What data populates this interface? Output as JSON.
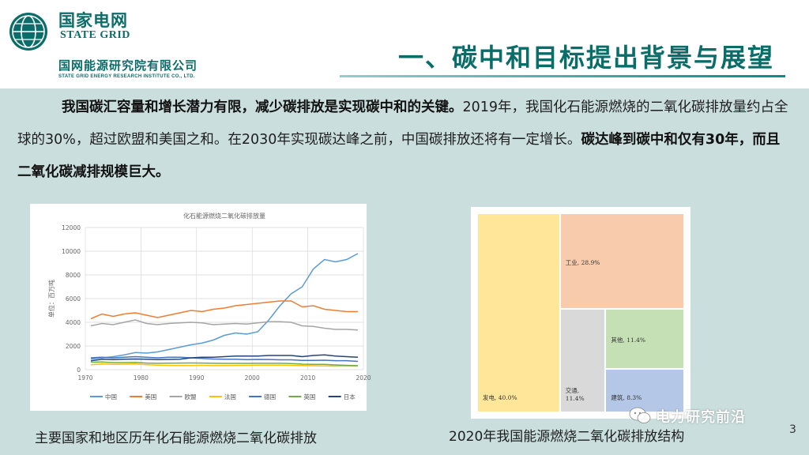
{
  "header": {
    "logo_cn": "国家电网",
    "logo_en": "STATE GRID",
    "sub_cn": "国网能源研究院有限公司",
    "sub_en": "STATE GRID ENERGY RESEARCH INSTITUTE CO., LTD.",
    "title": "一、碳中和目标提出背景与展望"
  },
  "paragraph": {
    "bold1": "我国碳汇容量和增长潜力有限，减少碳排放是实现碳中和的关键。",
    "normal1": "2019年，我国化石能源燃烧的二氧化碳排放量约占全球的30%，超过欧盟和美国之和。在2030年实现碳达峰之前，中国碳排放还将有一定增长。",
    "bold2": "碳达峰到碳中和仅有30年，而且二氧化碳减排规模巨大。"
  },
  "colors": {
    "brand": "#0b6d6a",
    "content_bg": "#c9dedd"
  },
  "chart_data": [
    {
      "type": "line",
      "title": "化石能源燃烧二氧化碳排放量",
      "ylabel": "单位：百万吨",
      "xlabel": "",
      "xlim": [
        1970,
        2020
      ],
      "ylim": [
        0,
        12000
      ],
      "x_ticks": [
        "1970",
        "1980",
        "1990",
        "2000",
        "2010",
        "2020"
      ],
      "y_ticks": [
        "0",
        "2000",
        "4000",
        "6000",
        "8000",
        "10000",
        "12000"
      ],
      "grid": true,
      "legend": "bottom",
      "x": [
        1971,
        1973,
        1975,
        1977,
        1979,
        1981,
        1983,
        1985,
        1987,
        1989,
        1991,
        1993,
        1995,
        1997,
        1999,
        2001,
        2003,
        2005,
        2007,
        2009,
        2011,
        2013,
        2015,
        2017,
        2019
      ],
      "series": [
        {
          "name": "中国",
          "color": "#5b9bd5",
          "values": [
            900,
            1000,
            1100,
            1250,
            1450,
            1400,
            1500,
            1700,
            1900,
            2100,
            2250,
            2500,
            2900,
            3100,
            3000,
            3200,
            4200,
            5400,
            6400,
            7000,
            8500,
            9300,
            9100,
            9300,
            9800
          ]
        },
        {
          "name": "美国",
          "color": "#ed7d31",
          "values": [
            4300,
            4700,
            4500,
            4700,
            4800,
            4600,
            4400,
            4600,
            4800,
            5000,
            4900,
            5100,
            5200,
            5400,
            5500,
            5600,
            5700,
            5800,
            5800,
            5300,
            5400,
            5100,
            5000,
            4900,
            4900
          ]
        },
        {
          "name": "欧盟",
          "color": "#a5a5a5",
          "values": [
            3700,
            3900,
            3800,
            4000,
            4200,
            3900,
            3800,
            3900,
            3950,
            4000,
            3950,
            3800,
            3850,
            3900,
            3850,
            3950,
            4050,
            4050,
            4000,
            3700,
            3650,
            3500,
            3400,
            3400,
            3350
          ]
        },
        {
          "name": "法国",
          "color": "#ffc000",
          "values": [
            420,
            480,
            450,
            470,
            480,
            420,
            380,
            360,
            350,
            350,
            370,
            340,
            350,
            360,
            370,
            380,
            380,
            380,
            370,
            350,
            330,
            320,
            300,
            310,
            300
          ]
        },
        {
          "name": "德国",
          "color": "#4472c4",
          "values": [
            1000,
            1050,
            1000,
            1050,
            1100,
            1050,
            1000,
            1050,
            1050,
            1000,
            950,
            900,
            880,
            880,
            850,
            870,
            860,
            830,
            830,
            780,
            780,
            800,
            760,
            760,
            700
          ]
        },
        {
          "name": "英国",
          "color": "#70ad47",
          "values": [
            630,
            650,
            600,
            600,
            620,
            560,
            540,
            550,
            560,
            570,
            560,
            540,
            530,
            530,
            530,
            540,
            540,
            540,
            520,
            470,
            450,
            450,
            400,
            370,
            340
          ]
        },
        {
          "name": "日本",
          "color": "#264478",
          "values": [
            750,
            880,
            850,
            880,
            900,
            880,
            850,
            870,
            880,
            1000,
            1050,
            1050,
            1100,
            1150,
            1150,
            1150,
            1200,
            1200,
            1200,
            1100,
            1200,
            1250,
            1150,
            1100,
            1050
          ]
        }
      ]
    },
    {
      "type": "treemap",
      "title": "",
      "items": [
        {
          "label": "发电",
          "value_label": "40.0%",
          "value": 40.0,
          "color": "#ffe699"
        },
        {
          "label": "工业",
          "value_label": "28.9%",
          "value": 28.9,
          "color": "#f8cbad"
        },
        {
          "label": "交通",
          "value_label": "11.4%",
          "value": 11.4,
          "color": "#d9d9d9"
        },
        {
          "label": "其他",
          "value_label": "11.4%",
          "value": 11.4,
          "color": "#c5e0b4"
        },
        {
          "label": "建筑",
          "value_label": "8.3%",
          "value": 8.3,
          "color": "#b4c7e7"
        }
      ]
    }
  ],
  "captions": {
    "left": "主要国家和地区历年化石能源燃烧二氧化碳排放",
    "right": "2020年我国能源燃烧二氧化碳排放结构"
  },
  "watermark": "电力研究前沿",
  "page_number": "3"
}
